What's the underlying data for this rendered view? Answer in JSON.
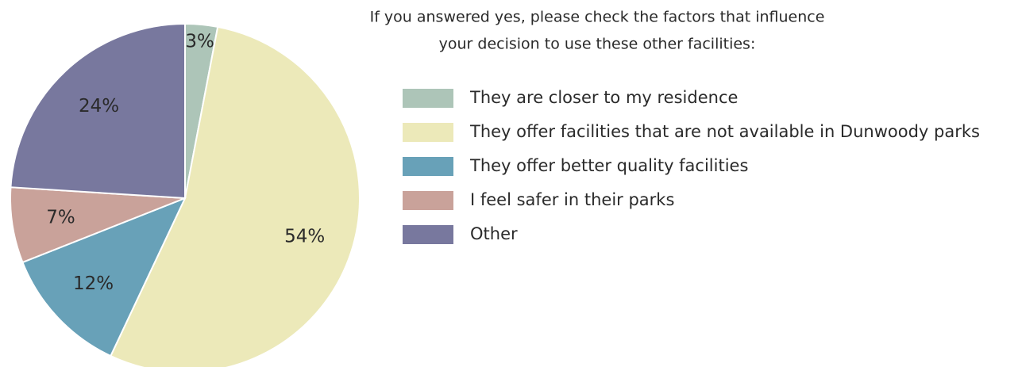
{
  "chart_data": {
    "type": "pie",
    "title_lines": [
      "If you answered yes, please check the factors that influence",
      "your decision to use these other facilities:"
    ],
    "categories": [
      "They are closer to my residence",
      "They offer facilities that are not available in Dunwoody parks",
      "They offer better quality facilities",
      "I feel safer in their parks",
      "Other"
    ],
    "values": [
      3,
      54,
      12,
      7,
      24
    ],
    "value_labels": [
      "3%",
      "54%",
      "12%",
      "7%",
      "24%"
    ],
    "colors": [
      "#adc5b8",
      "#ece9b9",
      "#68a1b8",
      "#c9a29a",
      "#78789e"
    ],
    "legend": "right"
  }
}
